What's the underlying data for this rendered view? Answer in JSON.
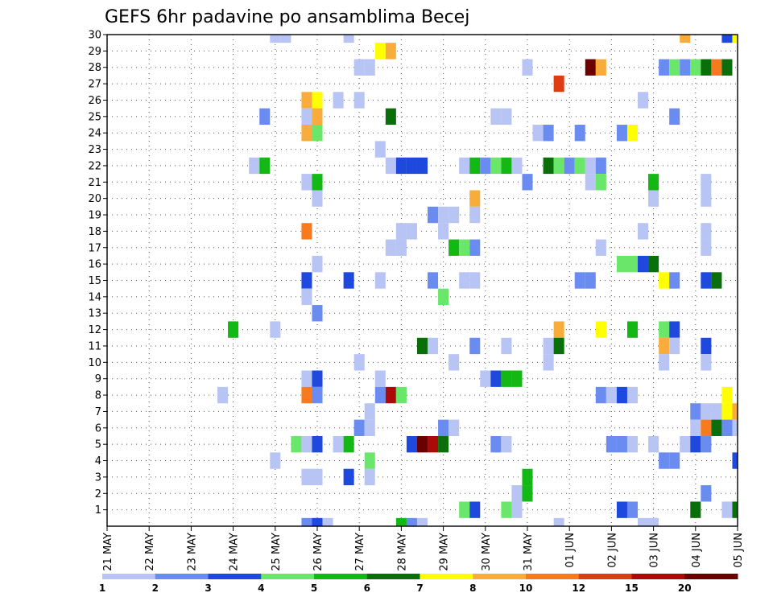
{
  "chart_data": {
    "type": "heatmap",
    "title": "GEFS 6hr padavine po ansamblima Becej",
    "xlabel": "",
    "ylabel": "",
    "x_range": [
      0,
      60
    ],
    "y_range": [
      0,
      30
    ],
    "y_ticks": [
      "1",
      "2",
      "3",
      "4",
      "5",
      "6",
      "7",
      "8",
      "9",
      "10",
      "11",
      "12",
      "13",
      "14",
      "15",
      "16",
      "17",
      "18",
      "19",
      "20",
      "21",
      "22",
      "23",
      "24",
      "25",
      "26",
      "27",
      "28",
      "29",
      "30"
    ],
    "x_ticks": [
      {
        "label": "21 MAY",
        "x": 0
      },
      {
        "label": "22 MAY",
        "x": 4
      },
      {
        "label": "23 MAY",
        "x": 8
      },
      {
        "label": "24 MAY",
        "x": 12
      },
      {
        "label": "25 MAY",
        "x": 16
      },
      {
        "label": "26 MAY",
        "x": 20
      },
      {
        "label": "27 MAY",
        "x": 24
      },
      {
        "label": "28 MAY",
        "x": 28
      },
      {
        "label": "29 MAY",
        "x": 32
      },
      {
        "label": "30 MAY",
        "x": 36
      },
      {
        "label": "31 MAY",
        "x": 40
      },
      {
        "label": "01 JUN",
        "x": 44
      },
      {
        "label": "02 JUN",
        "x": 48
      },
      {
        "label": "03 JUN",
        "x": 52
      },
      {
        "label": "04 JUN",
        "x": 56
      },
      {
        "label": "05 JUN",
        "x": 60
      }
    ],
    "grid": true,
    "colorbar": {
      "labels": [
        "1",
        "2",
        "3",
        "4",
        "5",
        "6",
        "7",
        "8",
        "10",
        "12",
        "15",
        "20"
      ],
      "colors": [
        "#b8c4f4",
        "#6a8cf0",
        "#1f48dc",
        "#6ae66a",
        "#14b814",
        "#0a6e0a",
        "#ffff00",
        "#f7ac3c",
        "#f77a1e",
        "#e03c14",
        "#aa0a0a",
        "#6a0000"
      ]
    },
    "cells": [
      [
        16,
        30,
        0
      ],
      [
        17,
        30,
        0
      ],
      [
        23,
        30,
        0
      ],
      [
        55,
        30,
        7
      ],
      [
        59,
        30,
        2
      ],
      [
        60,
        30,
        6
      ],
      [
        26,
        29,
        6
      ],
      [
        27,
        29,
        7
      ],
      [
        24,
        28,
        0
      ],
      [
        25,
        28,
        0
      ],
      [
        40,
        28,
        0
      ],
      [
        46,
        28,
        11
      ],
      [
        47,
        28,
        7
      ],
      [
        53,
        28,
        1
      ],
      [
        54,
        28,
        3
      ],
      [
        55,
        28,
        1
      ],
      [
        56,
        28,
        3
      ],
      [
        57,
        28,
        5
      ],
      [
        58,
        28,
        8
      ],
      [
        59,
        28,
        5
      ],
      [
        43,
        27,
        9
      ],
      [
        19,
        26,
        7
      ],
      [
        20,
        26,
        6
      ],
      [
        22,
        26,
        0
      ],
      [
        24,
        26,
        0
      ],
      [
        51,
        26,
        0
      ],
      [
        15,
        25,
        1
      ],
      [
        19,
        25,
        0
      ],
      [
        20,
        25,
        7
      ],
      [
        27,
        25,
        5
      ],
      [
        37,
        25,
        0
      ],
      [
        38,
        25,
        0
      ],
      [
        54,
        25,
        1
      ],
      [
        19,
        24,
        7
      ],
      [
        20,
        24,
        3
      ],
      [
        41,
        24,
        0
      ],
      [
        42,
        24,
        1
      ],
      [
        45,
        24,
        1
      ],
      [
        49,
        24,
        1
      ],
      [
        50,
        24,
        6
      ],
      [
        26,
        23,
        0
      ],
      [
        14,
        22,
        0
      ],
      [
        15,
        22,
        4
      ],
      [
        27,
        22,
        0
      ],
      [
        28,
        22,
        2
      ],
      [
        29,
        22,
        2
      ],
      [
        30,
        22,
        2
      ],
      [
        34,
        22,
        0
      ],
      [
        35,
        22,
        4
      ],
      [
        36,
        22,
        1
      ],
      [
        37,
        22,
        3
      ],
      [
        38,
        22,
        4
      ],
      [
        39,
        22,
        0
      ],
      [
        42,
        22,
        5
      ],
      [
        43,
        22,
        3
      ],
      [
        44,
        22,
        1
      ],
      [
        45,
        22,
        3
      ],
      [
        46,
        22,
        0
      ],
      [
        47,
        22,
        1
      ],
      [
        19,
        21,
        0
      ],
      [
        20,
        21,
        4
      ],
      [
        40,
        21,
        1
      ],
      [
        46,
        21,
        0
      ],
      [
        47,
        21,
        3
      ],
      [
        52,
        21,
        4
      ],
      [
        57,
        21,
        0
      ],
      [
        20,
        20,
        0
      ],
      [
        35,
        20,
        7
      ],
      [
        52,
        20,
        0
      ],
      [
        57,
        20,
        0
      ],
      [
        31,
        19,
        1
      ],
      [
        32,
        19,
        0
      ],
      [
        33,
        19,
        0
      ],
      [
        35,
        19,
        0
      ],
      [
        19,
        18,
        8
      ],
      [
        28,
        18,
        0
      ],
      [
        29,
        18,
        0
      ],
      [
        32,
        18,
        0
      ],
      [
        51,
        18,
        0
      ],
      [
        57,
        18,
        0
      ],
      [
        27,
        17,
        0
      ],
      [
        28,
        17,
        0
      ],
      [
        33,
        17,
        4
      ],
      [
        34,
        17,
        3
      ],
      [
        35,
        17,
        1
      ],
      [
        47,
        17,
        0
      ],
      [
        57,
        17,
        0
      ],
      [
        20,
        16,
        0
      ],
      [
        49,
        16,
        3
      ],
      [
        50,
        16,
        3
      ],
      [
        51,
        16,
        2
      ],
      [
        52,
        16,
        5
      ],
      [
        19,
        15,
        2
      ],
      [
        23,
        15,
        2
      ],
      [
        26,
        15,
        0
      ],
      [
        31,
        15,
        1
      ],
      [
        34,
        15,
        0
      ],
      [
        35,
        15,
        0
      ],
      [
        45,
        15,
        1
      ],
      [
        46,
        15,
        1
      ],
      [
        53,
        15,
        6
      ],
      [
        54,
        15,
        1
      ],
      [
        57,
        15,
        2
      ],
      [
        58,
        15,
        5
      ],
      [
        19,
        14,
        0
      ],
      [
        32,
        14,
        3
      ],
      [
        20,
        13,
        1
      ],
      [
        12,
        12,
        4
      ],
      [
        16,
        12,
        0
      ],
      [
        43,
        12,
        7
      ],
      [
        47,
        12,
        6
      ],
      [
        50,
        12,
        4
      ],
      [
        53,
        12,
        3
      ],
      [
        54,
        12,
        2
      ],
      [
        31,
        11,
        0
      ],
      [
        30,
        11,
        5
      ],
      [
        35,
        11,
        1
      ],
      [
        38,
        11,
        0
      ],
      [
        42,
        11,
        0
      ],
      [
        43,
        11,
        5
      ],
      [
        53,
        11,
        7
      ],
      [
        54,
        11,
        0
      ],
      [
        57,
        11,
        2
      ],
      [
        24,
        10,
        0
      ],
      [
        33,
        10,
        0
      ],
      [
        42,
        10,
        0
      ],
      [
        53,
        10,
        0
      ],
      [
        57,
        10,
        0
      ],
      [
        19,
        9,
        0
      ],
      [
        20,
        9,
        2
      ],
      [
        26,
        9,
        0
      ],
      [
        36,
        9,
        0
      ],
      [
        37,
        9,
        2
      ],
      [
        38,
        9,
        4
      ],
      [
        39,
        9,
        4
      ],
      [
        11,
        8,
        0
      ],
      [
        19,
        8,
        8
      ],
      [
        20,
        8,
        1
      ],
      [
        26,
        8,
        1
      ],
      [
        27,
        8,
        10
      ],
      [
        28,
        8,
        3
      ],
      [
        47,
        8,
        1
      ],
      [
        48,
        8,
        0
      ],
      [
        49,
        8,
        2
      ],
      [
        50,
        8,
        0
      ],
      [
        59,
        8,
        6
      ],
      [
        25,
        7,
        0
      ],
      [
        56,
        7,
        1
      ],
      [
        57,
        7,
        0
      ],
      [
        58,
        7,
        0
      ],
      [
        59,
        7,
        6
      ],
      [
        60,
        7,
        7
      ],
      [
        24,
        6,
        1
      ],
      [
        25,
        6,
        0
      ],
      [
        32,
        6,
        1
      ],
      [
        33,
        6,
        0
      ],
      [
        56,
        6,
        0
      ],
      [
        57,
        6,
        8
      ],
      [
        58,
        6,
        5
      ],
      [
        59,
        6,
        1
      ],
      [
        60,
        6,
        0
      ],
      [
        18,
        5,
        3
      ],
      [
        19,
        5,
        0
      ],
      [
        20,
        5,
        2
      ],
      [
        22,
        5,
        0
      ],
      [
        23,
        5,
        4
      ],
      [
        29,
        5,
        2
      ],
      [
        30,
        5,
        11
      ],
      [
        31,
        5,
        10
      ],
      [
        32,
        5,
        5
      ],
      [
        37,
        5,
        1
      ],
      [
        38,
        5,
        0
      ],
      [
        48,
        5,
        1
      ],
      [
        49,
        5,
        1
      ],
      [
        50,
        5,
        0
      ],
      [
        52,
        5,
        0
      ],
      [
        55,
        5,
        0
      ],
      [
        56,
        5,
        2
      ],
      [
        57,
        5,
        1
      ],
      [
        16,
        4,
        0
      ],
      [
        25,
        4,
        3
      ],
      [
        53,
        4,
        1
      ],
      [
        54,
        4,
        1
      ],
      [
        60,
        4,
        2
      ],
      [
        19,
        3,
        0
      ],
      [
        20,
        3,
        0
      ],
      [
        23,
        3,
        2
      ],
      [
        25,
        3,
        0
      ],
      [
        40,
        3,
        4
      ],
      [
        39,
        2,
        0
      ],
      [
        40,
        2,
        4
      ],
      [
        57,
        2,
        1
      ],
      [
        34,
        1,
        3
      ],
      [
        35,
        1,
        2
      ],
      [
        38,
        1,
        3
      ],
      [
        39,
        1,
        0
      ],
      [
        49,
        1,
        2
      ],
      [
        50,
        1,
        1
      ],
      [
        56,
        1,
        5
      ],
      [
        59,
        1,
        0
      ],
      [
        60,
        1,
        5
      ],
      [
        19,
        0,
        1
      ],
      [
        20,
        0,
        2
      ],
      [
        21,
        0,
        0
      ],
      [
        28,
        0,
        4
      ],
      [
        29,
        0,
        1
      ],
      [
        30,
        0,
        0
      ],
      [
        43,
        0,
        0
      ],
      [
        51,
        0,
        0
      ],
      [
        52,
        0,
        0
      ]
    ]
  }
}
